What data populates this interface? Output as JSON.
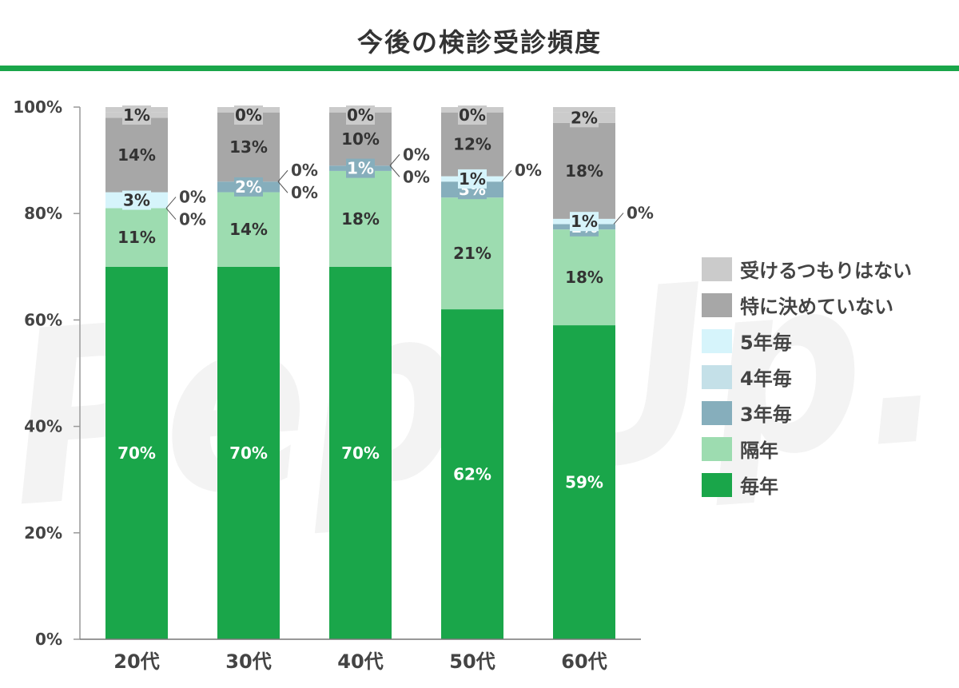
{
  "title": "今後の検診受診頻度",
  "watermark": "Pep Up.",
  "chart_data": {
    "type": "bar",
    "stacked": true,
    "categories": [
      "20代",
      "30代",
      "40代",
      "50代",
      "60代"
    ],
    "ylim": [
      0,
      100
    ],
    "yticks": [
      "0%",
      "20%",
      "40%",
      "60%",
      "80%",
      "100%"
    ],
    "legend_position": "right",
    "series": [
      {
        "name": "毎年",
        "color": "#1aa64a",
        "label_color": "#ffffff",
        "values": [
          70,
          70,
          70,
          62,
          59
        ]
      },
      {
        "name": "隔年",
        "color": "#9ddcb0",
        "label_color": "#333333",
        "values": [
          11,
          14,
          18,
          21,
          18
        ]
      },
      {
        "name": "3年毎",
        "color": "#86aebc",
        "label_color": "#ffffff",
        "values": [
          0,
          2,
          1,
          3,
          1
        ]
      },
      {
        "name": "4年毎",
        "color": "#c4e0e8",
        "label_color": "#333333",
        "values": [
          0,
          0,
          0,
          0,
          0
        ]
      },
      {
        "name": "5年毎",
        "color": "#d6f4fb",
        "label_color": "#333333",
        "values": [
          3,
          0,
          0,
          1,
          1
        ]
      },
      {
        "name": "特に決めていない",
        "color": "#a7a7a7",
        "label_color": "#333333",
        "values": [
          14,
          13,
          10,
          12,
          18
        ]
      },
      {
        "name": "受けるつもりはない",
        "color": "#cbcbcb",
        "label_color": "#333333",
        "values": [
          1,
          0,
          0,
          0,
          2
        ]
      }
    ],
    "data_labels": [
      [
        "70%",
        "11%",
        "0%",
        "0%",
        "3%",
        "14%",
        "1%"
      ],
      [
        "70%",
        "14%",
        "2%",
        "0%",
        "0%",
        "13%",
        "0%"
      ],
      [
        "70%",
        "18%",
        "1%",
        "0%",
        "0%",
        "10%",
        "0%"
      ],
      [
        "62%",
        "21%",
        "3%",
        "0%",
        "1%",
        "12%",
        "0%"
      ],
      [
        "59%",
        "18%",
        "1%",
        "0%",
        "1%",
        "18%",
        "2%"
      ]
    ],
    "legend_order": [
      "受けるつもりはない",
      "特に決めていない",
      "5年毎",
      "4年毎",
      "3年毎",
      "隔年",
      "毎年"
    ]
  }
}
